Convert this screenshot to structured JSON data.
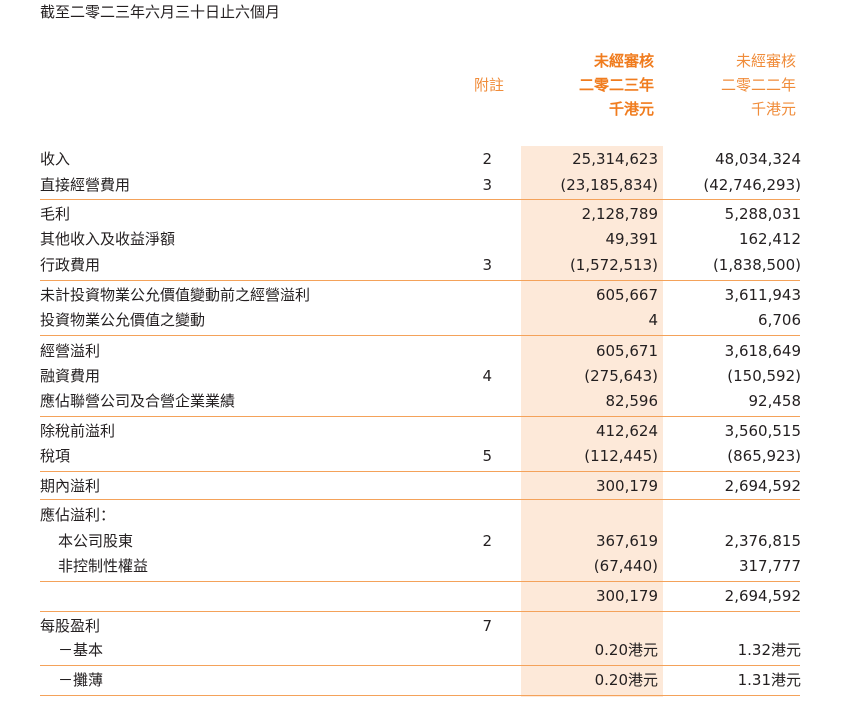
{
  "page": {
    "title": "截至二零二三年六月三十日止六個月"
  },
  "header": {
    "note_label": "附註",
    "current": {
      "line1": "未經審核",
      "line2": "二零二三年",
      "line3": "千港元"
    },
    "previous": {
      "line1": "未經審核",
      "line2": "二零二二年",
      "line3": "千港元"
    }
  },
  "colors": {
    "accent": "#f07c1e",
    "rule": "#f4a25a",
    "highlight": "#fde9d9"
  },
  "rows": [
    {
      "label": "收入",
      "note": "2",
      "current": "25,314,623",
      "previous": "48,034,324"
    },
    {
      "label": "直接經營費用",
      "note": "3",
      "current": "(23,185,834)",
      "previous": "(42,746,293)"
    },
    {
      "label": "毛利",
      "note": "",
      "current": "2,128,789",
      "previous": "5,288,031"
    },
    {
      "label": "其他收入及收益淨額",
      "note": "",
      "current": "49,391",
      "previous": "162,412"
    },
    {
      "label": "行政費用",
      "note": "3",
      "current": "(1,572,513)",
      "previous": "(1,838,500)"
    },
    {
      "label": "未計投資物業公允價值變動前之經營溢利",
      "note": "",
      "current": "605,667",
      "previous": "3,611,943"
    },
    {
      "label": "投資物業公允價值之變動",
      "note": "",
      "current": "4",
      "previous": "6,706"
    },
    {
      "label": "經營溢利",
      "note": "",
      "current": "605,671",
      "previous": "3,618,649"
    },
    {
      "label": "融資費用",
      "note": "4",
      "current": "(275,643)",
      "previous": "(150,592)"
    },
    {
      "label": "應佔聯營公司及合營企業業績",
      "note": "",
      "current": "82,596",
      "previous": "92,458"
    },
    {
      "label": "除稅前溢利",
      "note": "",
      "current": "412,624",
      "previous": "3,560,515"
    },
    {
      "label": "稅項",
      "note": "5",
      "current": "(112,445)",
      "previous": "(865,923)"
    },
    {
      "label": "期內溢利",
      "note": "",
      "current": "300,179",
      "previous": "2,694,592"
    },
    {
      "label": "應佔溢利：",
      "note": "",
      "current": "",
      "previous": ""
    },
    {
      "label": "本公司股東",
      "note": "2",
      "current": "367,619",
      "previous": "2,376,815"
    },
    {
      "label": "非控制性權益",
      "note": "",
      "current": "(67,440)",
      "previous": "317,777"
    },
    {
      "label": "",
      "note": "",
      "current": "300,179",
      "previous": "2,694,592"
    },
    {
      "label": "每股盈利",
      "note": "7",
      "current": "",
      "previous": ""
    },
    {
      "label": "－基本",
      "note": "",
      "current": "0.20港元",
      "previous": "1.32港元"
    },
    {
      "label": "－攤薄",
      "note": "",
      "current": "0.20港元",
      "previous": "1.31港元"
    }
  ]
}
